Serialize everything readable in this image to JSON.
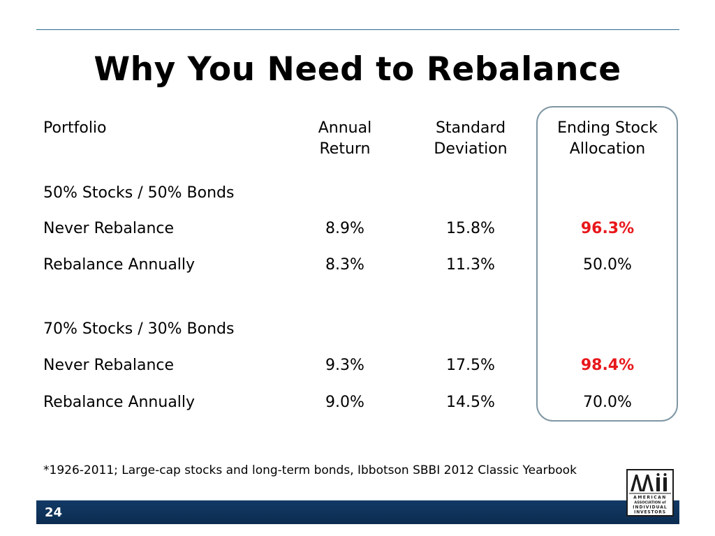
{
  "slide": {
    "title": "Why You Need to Rebalance",
    "page_number": "24",
    "footnote": "*1926-2011; Large-cap stocks and long-term bonds, Ibbotson SBBI 2012 Classic Yearbook"
  },
  "table": {
    "headers": {
      "portfolio": "Portfolio",
      "annual_return": "Annual Return",
      "std_dev": "Standard Deviation",
      "ending_alloc": "Ending Stock Allocation"
    },
    "groups": [
      {
        "label": "50% Stocks / 50% Bonds",
        "rows": [
          {
            "name": "Never Rebalance",
            "annual_return": "8.9%",
            "std_dev": "15.8%",
            "ending_alloc": "96.3%",
            "highlight": true
          },
          {
            "name": "Rebalance Annually",
            "annual_return": "8.3%",
            "std_dev": "11.3%",
            "ending_alloc": "50.0%",
            "highlight": false
          }
        ]
      },
      {
        "label": "70% Stocks / 30% Bonds",
        "rows": [
          {
            "name": "Never Rebalance",
            "annual_return": "9.3%",
            "std_dev": "17.5%",
            "ending_alloc": "98.4%",
            "highlight": true
          },
          {
            "name": "Rebalance Annually",
            "annual_return": "9.0%",
            "std_dev": "14.5%",
            "ending_alloc": "70.0%",
            "highlight": false
          }
        ]
      }
    ]
  },
  "logo": {
    "name": "AAII",
    "lines": [
      "AMERICAN",
      "ASSOCIATION of",
      "INDIVIDUAL",
      "INVESTORS"
    ]
  },
  "colors": {
    "highlight_text": "#e8171b",
    "footer_bar": "#0c2c50",
    "box_border": "#7f97a4"
  }
}
